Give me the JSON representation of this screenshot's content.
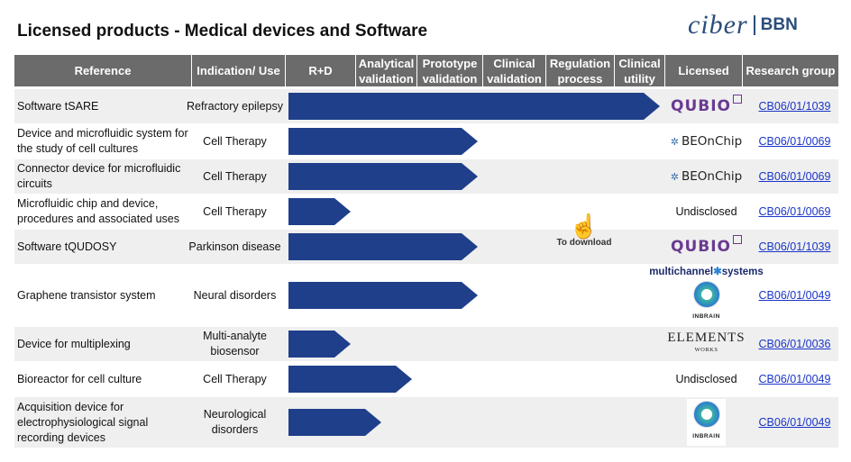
{
  "title": "Licensed products - Medical devices and Software",
  "brand": {
    "ciber": "ciber",
    "bbn": "BBN"
  },
  "headers": {
    "reference": "Reference",
    "indication": "Indication/ Use",
    "rd": "R+D",
    "analytical_1": "Analytical",
    "analytical_2": "validation",
    "prototype_1": "Prototype",
    "prototype_2": "validation",
    "clinical_1": "Clinical",
    "clinical_2": "validation",
    "regulation_1": "Regulation",
    "regulation_2": "process",
    "utility_1": "Clinical",
    "utility_2": "utility",
    "licensed": "Licensed",
    "research_group": "Research group"
  },
  "rows": [
    {
      "ref": "Software tSARE",
      "indication": "Refractory epilepsy",
      "licensed": "",
      "licensed_logo": "qubio-logo",
      "group": "CB06/01/1039",
      "progress": 7
    },
    {
      "ref": "Device and microfluidic system for the study of cell cultures",
      "indication": "Cell Therapy",
      "licensed": "",
      "licensed_logo": "beonchip-logo",
      "group": "CB06/01/0069",
      "progress": 3
    },
    {
      "ref": "Connector device for microfluidic circuits",
      "indication": "Cell Therapy",
      "licensed": "",
      "licensed_logo": "beonchip-logo",
      "group": "CB06/01/0069",
      "progress": 3
    },
    {
      "ref": "Microfluidic chip and device, procedures and associated uses",
      "indication": "Cell Therapy",
      "licensed": "Undisclosed",
      "licensed_logo": "",
      "group": "CB06/01/0069",
      "progress": 1
    },
    {
      "ref": "Software tQUDOSY",
      "indication": "Parkinson disease",
      "licensed": "",
      "licensed_logo": "qubio-logo",
      "group": "CB06/01/1039",
      "progress": 3
    },
    {
      "ref": "Graphene transistor system",
      "indication": "Neural disorders",
      "licensed": "",
      "licensed_logo": "multichannel-inbrain-logo",
      "group": "CB06/01/0049",
      "progress": 3
    },
    {
      "ref": "Device for multiplexing",
      "indication_1": "Multi-analyte",
      "indication_2": "biosensor",
      "licensed": "",
      "licensed_logo": "elements-logo",
      "group": "CB06/01/0036",
      "progress": 1
    },
    {
      "ref": "Bioreactor for cell culture",
      "indication": "Cell Therapy",
      "licensed": "Undisclosed",
      "licensed_logo": "",
      "group": "CB06/01/0049",
      "progress": 2
    },
    {
      "ref": "Acquisition device for electrophysiological signal recording devices",
      "indication_1": "Neurological",
      "indication_2": "disorders",
      "licensed": "",
      "licensed_logo": "inbrain-logo",
      "group": "CB06/01/0049",
      "progress": 1.5
    }
  ],
  "logos": {
    "qubio": "QUBIO",
    "qubio_tech": "tech",
    "beonchip": "BEOnChip",
    "multichannel_1": "multichannel",
    "multichannel_2": "systems",
    "inbrain": "INBRAIN",
    "elements_1": "ELEMENTS",
    "elements_2": "WORKS"
  },
  "download": {
    "label": "To download",
    "icon": "hand-click-icon"
  },
  "colors": {
    "header": "#6b6b6b",
    "arrow": "#1f3f8a",
    "link": "#1a35c9",
    "row_alt": "#efefef"
  }
}
